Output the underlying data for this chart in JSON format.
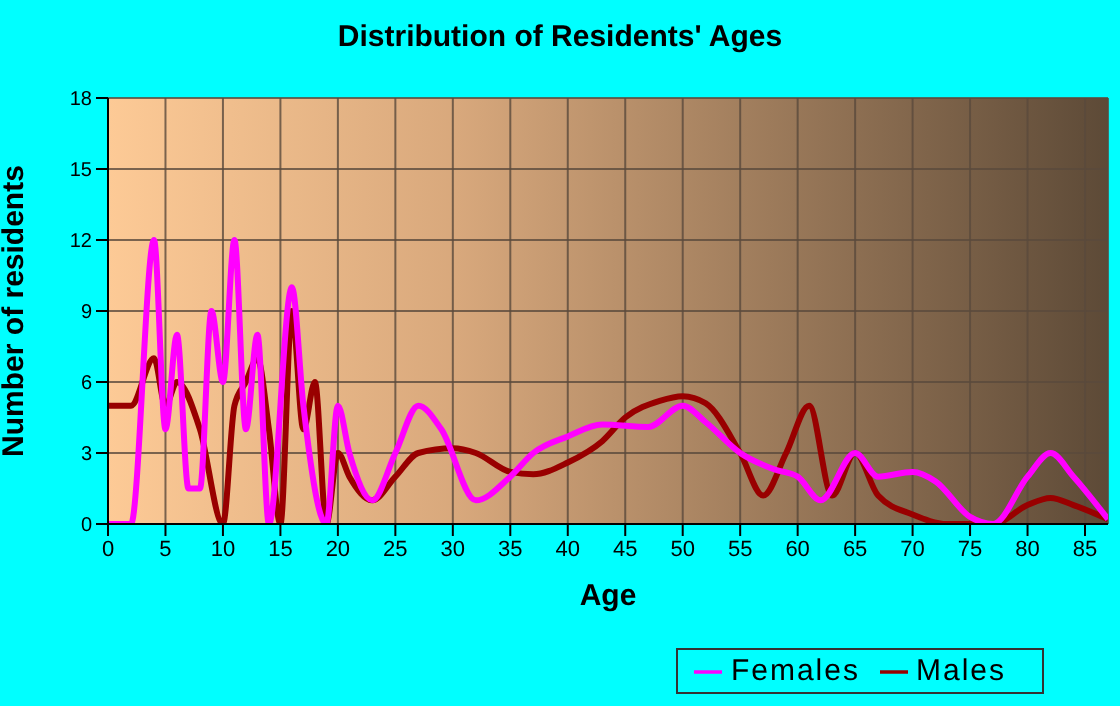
{
  "chart_data": {
    "type": "line",
    "title": "Distribution of Residents' Ages",
    "xlabel": "Age",
    "ylabel": "Number of residents",
    "xlim": [
      0,
      87
    ],
    "xticks": [
      0,
      5,
      10,
      15,
      20,
      25,
      30,
      35,
      40,
      45,
      50,
      55,
      60,
      65,
      70,
      75,
      80,
      85
    ],
    "ylim": [
      0,
      18
    ],
    "yticks": [
      0,
      3,
      6,
      9,
      12,
      15,
      18
    ],
    "grid": true,
    "legend": "bottom right",
    "marker": "none",
    "line_style": "solid",
    "series": [
      {
        "name": "Males",
        "color": "#990000",
        "x": [
          0,
          1,
          2,
          4,
          5,
          6,
          8,
          10,
          11,
          12,
          13,
          14,
          15,
          16,
          17,
          18,
          19,
          20,
          21,
          23,
          25,
          27,
          30,
          32,
          35,
          37,
          40,
          43,
          45,
          48,
          50,
          52,
          55,
          57,
          59,
          61,
          63,
          65,
          67,
          70,
          73,
          77,
          80,
          82,
          84,
          87
        ],
        "values": [
          5,
          5,
          5,
          7,
          5,
          6,
          4,
          0,
          5,
          6,
          7,
          4,
          0,
          9,
          4,
          6,
          0,
          3,
          2,
          1,
          2,
          3,
          3.2,
          3,
          2.2,
          2.1,
          2.6,
          3.5,
          4.5,
          5.2,
          5.4,
          5.1,
          3,
          1.2,
          3,
          5,
          1.2,
          3,
          1.2,
          0.4,
          0,
          0,
          0.8,
          1.1,
          0.8,
          0.2
        ]
      },
      {
        "name": "Females",
        "color": "#ff00ff",
        "x": [
          0,
          2,
          4,
          5,
          6,
          7,
          8,
          9,
          10,
          11,
          12,
          13,
          14,
          16,
          17,
          19,
          20,
          21,
          23,
          25,
          27,
          29,
          32,
          35,
          37,
          40,
          43,
          47,
          50,
          52,
          55,
          58,
          60,
          62,
          65,
          67,
          70,
          72,
          75,
          77,
          80,
          82,
          84,
          87
        ],
        "values": [
          0,
          0,
          12,
          4,
          8,
          1.5,
          1.5,
          9,
          6,
          12,
          4,
          8,
          0,
          10,
          5,
          0,
          5,
          3,
          1,
          3,
          5,
          4,
          1,
          2,
          3,
          3.7,
          4.2,
          4.1,
          5,
          4.3,
          3,
          2.3,
          2,
          1,
          3,
          2,
          2.2,
          1.8,
          0.3,
          0,
          2,
          3,
          2,
          0.2
        ]
      }
    ]
  }
}
